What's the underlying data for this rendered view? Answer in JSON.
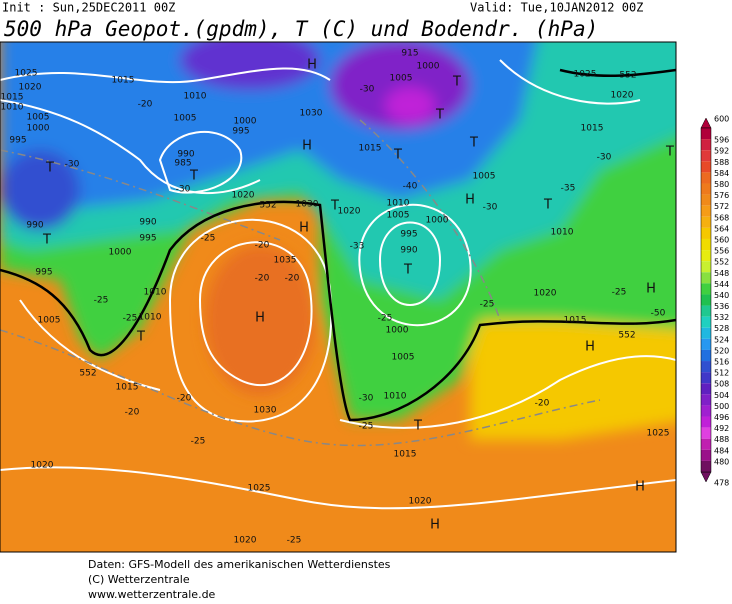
{
  "header": {
    "init": "Init : Sun,25DEC2011 00Z",
    "valid": "Valid: Tue,10JAN2012 00Z",
    "title": "500 hPa Geopot.(gpdm), T (C) und Bodendr. (hPa)"
  },
  "footer": [
    "Daten: GFS-Modell des amerikanischen Wetterdienstes",
    "(C) Wetterzentrale",
    "www.wetterzentrale.de"
  ],
  "legend": {
    "levels": [
      600,
      596,
      592,
      588,
      584,
      580,
      576,
      572,
      568,
      564,
      560,
      556,
      552,
      548,
      544,
      540,
      536,
      532,
      528,
      524,
      520,
      516,
      512,
      508,
      504,
      500,
      496,
      492,
      488,
      484,
      480,
      478
    ],
    "colors": [
      "#b0003a",
      "#d02040",
      "#e03a3a",
      "#e84a28",
      "#ec6a20",
      "#ee7a1c",
      "#f08a1a",
      "#f59c18",
      "#f5b010",
      "#f5c800",
      "#f0dc00",
      "#e6ec10",
      "#c8f030",
      "#88e040",
      "#40d040",
      "#20c050",
      "#20c890",
      "#20d0c0",
      "#20b8e0",
      "#2898f0",
      "#2070e0",
      "#3050d0",
      "#4038c8",
      "#6020c0",
      "#8020c8",
      "#a020d0",
      "#c020d8",
      "#e040e0",
      "#c020b0",
      "#9a108a",
      "#701060"
    ]
  },
  "map_labels": [
    "1025",
    "1020",
    "1015",
    "1010",
    "1005",
    "1000",
    "995",
    "T",
    "990",
    "T",
    "995",
    "1015",
    "1010",
    "1005",
    "1000",
    "995",
    "990",
    "985",
    "T",
    "-20",
    "-30",
    "-30",
    "H",
    "1030",
    "H",
    "1020",
    "1030",
    "1020",
    "T",
    "H",
    "1035",
    "-20",
    "-20",
    "-20",
    "H",
    "-25",
    "-25",
    "-25",
    "1010",
    "T",
    "1015",
    "-20",
    "-20",
    "-25",
    "1030",
    "1025",
    "1020",
    "1020",
    "-25",
    "1005",
    "1010",
    "1000",
    "990",
    "995",
    "1005",
    "1000",
    "915",
    "-30",
    "T",
    "T",
    "1015",
    "T",
    "T",
    "1005",
    "-40",
    "1010",
    "1005",
    "H",
    "-30",
    "1000",
    "995",
    "T",
    "990",
    "-33",
    "-25",
    "1000",
    "1005",
    "1010",
    "-30",
    "-25",
    "T",
    "1015",
    "1020",
    "H",
    "-25",
    "1025",
    "1020",
    "1015",
    "-30",
    "-35",
    "T",
    "1010",
    "1020",
    "1015",
    "H",
    "-50",
    "-25",
    "H",
    "-20",
    "1025",
    "H",
    "T",
    "552",
    "552",
    "552",
    "552"
  ]
}
